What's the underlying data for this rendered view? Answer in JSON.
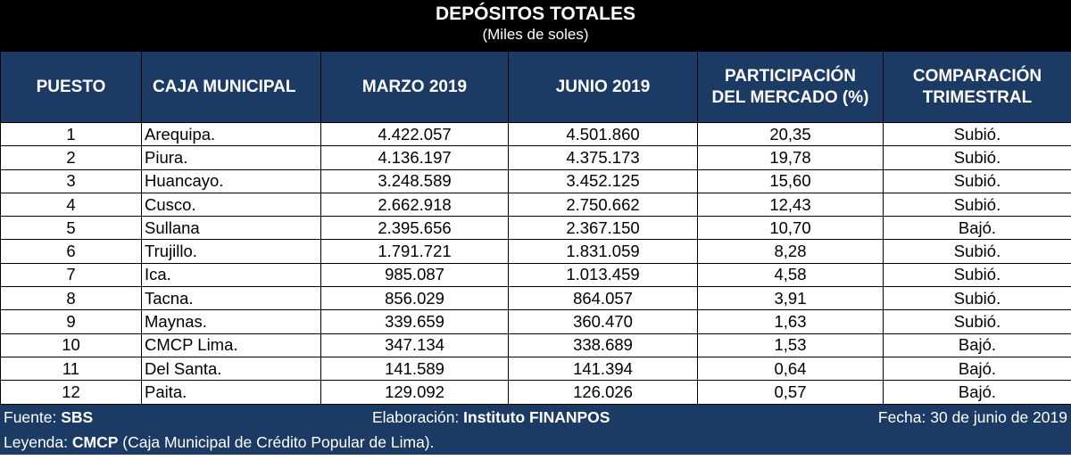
{
  "title": "DEPÓSITOS TOTALES",
  "subtitle": "(Miles de soles)",
  "headers": {
    "rank": "PUESTO",
    "entity": "CAJA MUNICIPAL",
    "mar": "MARZO 2019",
    "jun": "JUNIO 2019",
    "share_l1": "PARTICIPACIÓN",
    "share_l2": "DEL MERCADO (%)",
    "cmp_l1": "COMPARACIÓN",
    "cmp_l2": "TRIMESTRAL"
  },
  "rows": [
    {
      "rank": "1",
      "name": "Arequipa.",
      "mar": "4.422.057",
      "jun": "4.501.860",
      "share": "20,35",
      "cmp": "Subió."
    },
    {
      "rank": "2",
      "name": "Piura.",
      "mar": "4.136.197",
      "jun": "4.375.173",
      "share": "19,78",
      "cmp": "Subió."
    },
    {
      "rank": "3",
      "name": "Huancayo.",
      "mar": "3.248.589",
      "jun": "3.452.125",
      "share": "15,60",
      "cmp": "Subió."
    },
    {
      "rank": "4",
      "name": "Cusco.",
      "mar": "2.662.918",
      "jun": "2.750.662",
      "share": "12,43",
      "cmp": "Subió."
    },
    {
      "rank": "5",
      "name": "Sullana",
      "mar": "2.395.656",
      "jun": "2.367.150",
      "share": "10,70",
      "cmp": "Bajó."
    },
    {
      "rank": "6",
      "name": "Trujillo.",
      "mar": "1.791.721",
      "jun": "1.831.059",
      "share": "8,28",
      "cmp": "Subió."
    },
    {
      "rank": "7",
      "name": "Ica.",
      "mar": "985.087",
      "jun": "1.013.459",
      "share": "4,58",
      "cmp": "Subió."
    },
    {
      "rank": "8",
      "name": "Tacna.",
      "mar": "856.029",
      "jun": "864.057",
      "share": "3,91",
      "cmp": "Subió."
    },
    {
      "rank": "9",
      "name": "Maynas.",
      "mar": "339.659",
      "jun": "360.470",
      "share": "1,63",
      "cmp": "Subió."
    },
    {
      "rank": "10",
      "name": "CMCP Lima.",
      "mar": "347.134",
      "jun": "338.689",
      "share": "1,53",
      "cmp": "Bajó."
    },
    {
      "rank": "11",
      "name": "Del Santa.",
      "mar": "141.589",
      "jun": "141.394",
      "share": "0,64",
      "cmp": "Bajó."
    },
    {
      "rank": "12",
      "name": "Paita.",
      "mar": "129.092",
      "jun": "126.026",
      "share": "0,57",
      "cmp": "Bajó."
    }
  ],
  "footer": {
    "source_label": "Fuente:",
    "source_value": "SBS",
    "elab_label": "Elaboración:",
    "elab_value": "Instituto FINANPOS",
    "date": "Fecha: 30 de junio de 2019",
    "legend_label": "Leyenda:",
    "legend_key": "CMCP",
    "legend_text": "(Caja Municipal de Crédito Popular de Lima)."
  },
  "colors": {
    "header_bg": "#1b3a64",
    "title_bg": "#000000"
  }
}
